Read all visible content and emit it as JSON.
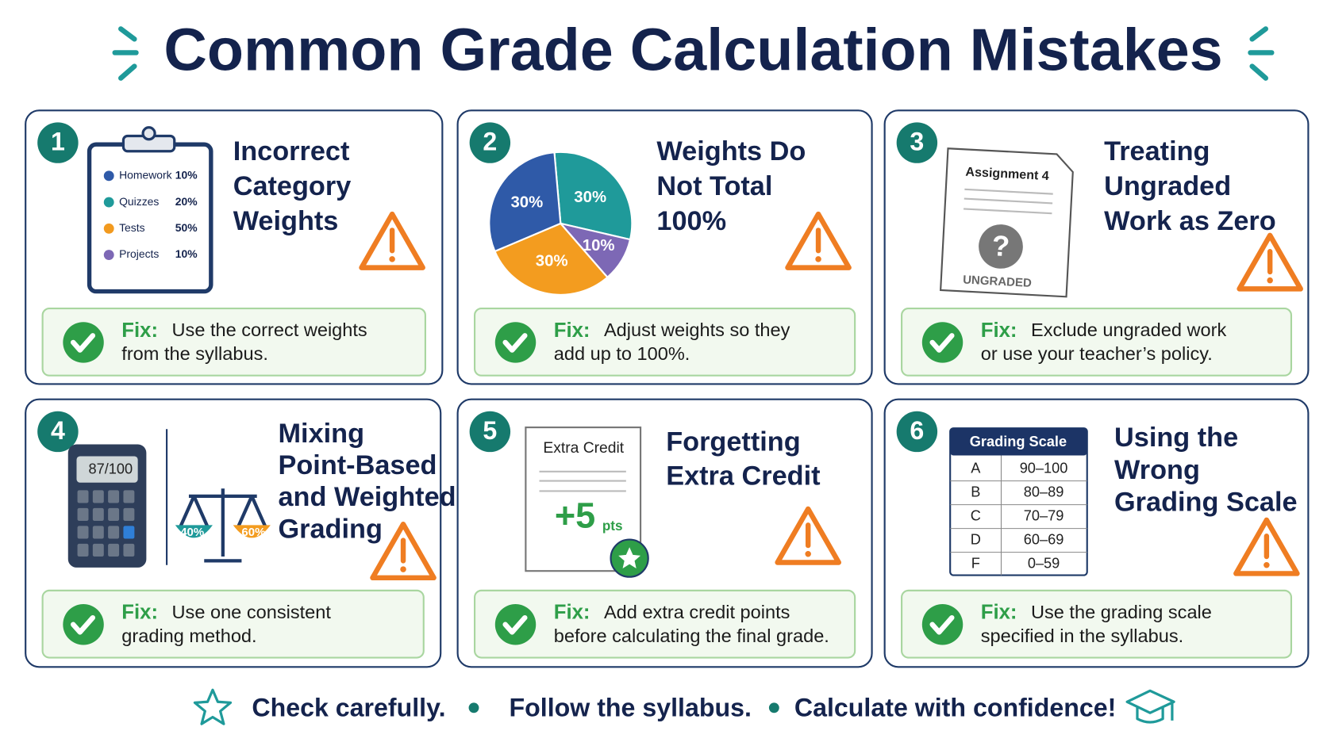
{
  "title": "Common Grade Calculation Mistakes",
  "cards": [
    {
      "number": "1",
      "title_lines": [
        "Incorrect",
        "Category",
        "Weights"
      ],
      "fix_label": "Fix:",
      "fix_lines": [
        "Use the correct weights",
        "from the syllabus."
      ],
      "clipboard": {
        "items": [
          {
            "name": "Homework",
            "pct": "10%"
          },
          {
            "name": "Quizzes",
            "pct": "20%"
          },
          {
            "name": "Tests",
            "pct": "50%"
          },
          {
            "name": "Projects",
            "pct": "10%"
          }
        ]
      }
    },
    {
      "number": "2",
      "title_lines": [
        "Weights Do",
        "Not Total",
        "100%"
      ],
      "fix_label": "Fix:",
      "fix_lines": [
        "Adjust weights so they",
        "add up to 100%."
      ],
      "pie": {
        "values": [
          30,
          10,
          30,
          30
        ],
        "value_labels": [
          "30%",
          "10%",
          "30%",
          "30%"
        ],
        "colors": [
          "#1f9a9a",
          "#7d68b5",
          "#f39c1f",
          "#2f5aa8"
        ]
      }
    },
    {
      "number": "3",
      "title_lines": [
        "Treating",
        "Ungraded",
        "Work as Zero"
      ],
      "fix_label": "Fix:",
      "fix_lines": [
        "Exclude ungraded work",
        "or use your teacher’s policy."
      ],
      "paper": {
        "title": "Assignment 4",
        "mark": "?",
        "stamp": "UNGRADED"
      }
    },
    {
      "number": "4",
      "title_lines": [
        "Mixing",
        "Point-Based",
        "and Weighted",
        "Grading"
      ],
      "fix_label": "Fix:",
      "fix_lines": [
        "Use one consistent",
        "grading method."
      ],
      "calculator": {
        "display": "87/100"
      },
      "scale": {
        "left": "40%",
        "right": "60%"
      }
    },
    {
      "number": "5",
      "title_lines": [
        "Forgetting",
        "Extra Credit"
      ],
      "fix_label": "Fix:",
      "fix_lines": [
        "Add extra credit points",
        "before calculating the final grade."
      ],
      "extra_credit": {
        "title": "Extra Credit",
        "amount": "+5",
        "unit": "pts"
      }
    },
    {
      "number": "6",
      "title_lines": [
        "Using the",
        "Wrong",
        "Grading Scale"
      ],
      "fix_label": "Fix:",
      "fix_lines": [
        "Use the grading scale",
        "specified in the syllabus."
      ],
      "grading_scale": {
        "title": "Grading Scale",
        "rows": [
          [
            "A",
            "90–100"
          ],
          [
            "B",
            "80–89"
          ],
          [
            "C",
            "70–79"
          ],
          [
            "D",
            "60–69"
          ],
          [
            "F",
            "0–59"
          ]
        ]
      }
    }
  ],
  "footer": [
    "Check carefully.",
    "Follow the syllabus.",
    "Calculate with confidence!"
  ]
}
